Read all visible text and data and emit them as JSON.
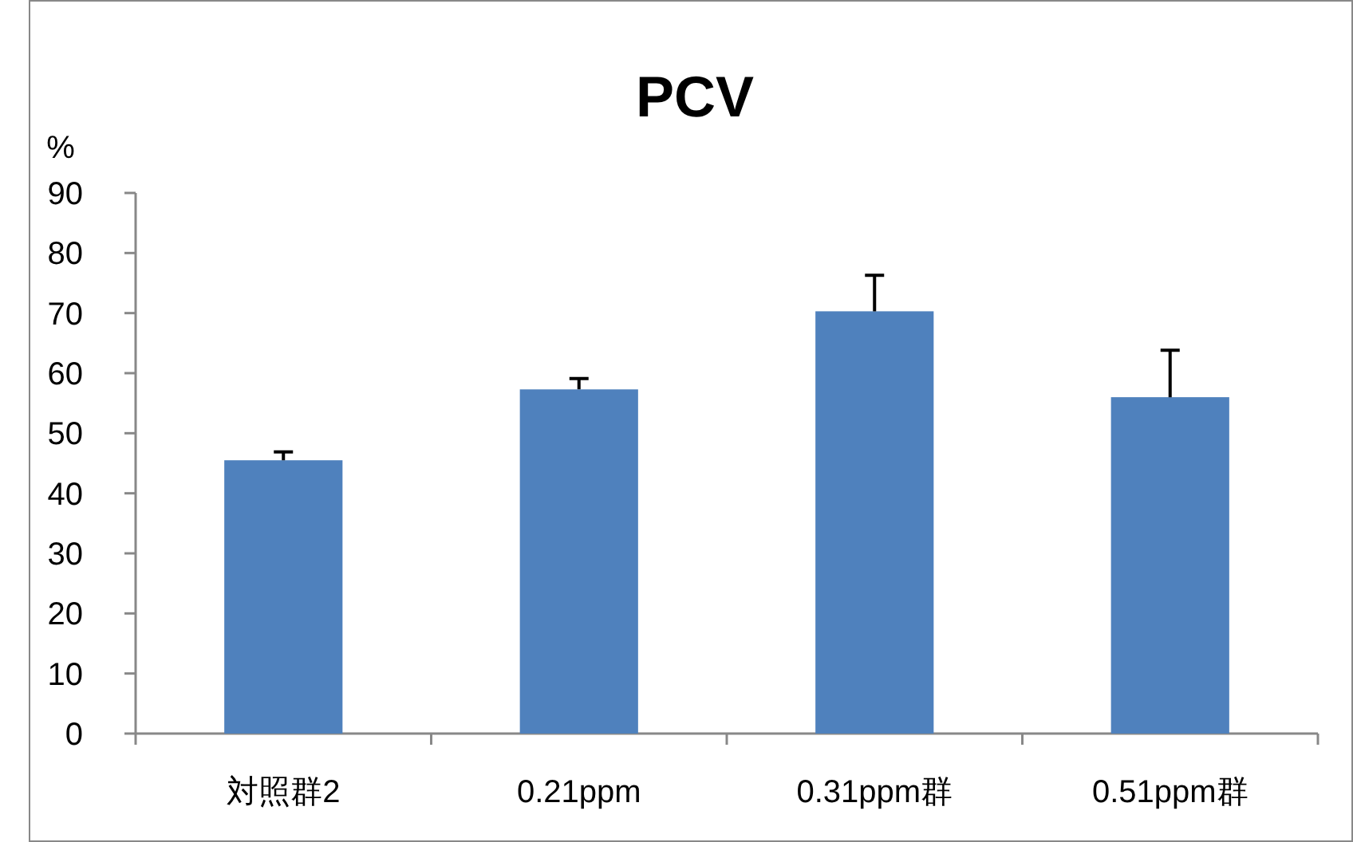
{
  "chart_data": {
    "type": "bar",
    "title": "PCV",
    "ylabel": "%",
    "categories": [
      "対照群2",
      "0.21ppm",
      "0.31ppm群",
      "0.51ppm群"
    ],
    "values": [
      45.5,
      57.3,
      70.3,
      56.0
    ],
    "errors": [
      [
        45.5,
        46.9
      ],
      [
        57.3,
        59.1
      ],
      [
        70.3,
        76.3
      ],
      [
        56.0,
        63.8
      ]
    ],
    "color": "#4f81bd",
    "ylim": [
      0,
      90
    ],
    "yticks": [
      0,
      10,
      20,
      30,
      40,
      50,
      60,
      70,
      80,
      90
    ],
    "grid": false
  }
}
